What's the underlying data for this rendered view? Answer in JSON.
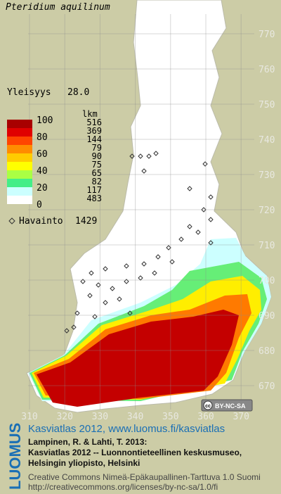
{
  "title": "Pteridium aquilinum",
  "frequency": {
    "label": "Yleisyys",
    "value": "28.0"
  },
  "legend": {
    "count_header": "lkm",
    "scale_labels": [
      100,
      80,
      60,
      40,
      20,
      0
    ],
    "classes": [
      {
        "count": 516,
        "color": "#a80000"
      },
      {
        "count": 369,
        "color": "#e00000"
      },
      {
        "count": 144,
        "color": "#ff4400"
      },
      {
        "count": 79,
        "color": "#ff8c00"
      },
      {
        "count": 90,
        "color": "#ffcc00"
      },
      {
        "count": 75,
        "color": "#ffff00"
      },
      {
        "count": 65,
        "color": "#aaff44"
      },
      {
        "count": 82,
        "color": "#44ee88"
      },
      {
        "count": 117,
        "color": "#ccffff"
      },
      {
        "count": 483,
        "color": "#ffffff"
      }
    ],
    "observation": {
      "label": "Havainto",
      "count": 1429
    }
  },
  "map_grid": {
    "y_labels": [
      770,
      760,
      750,
      740,
      730,
      720,
      710,
      700,
      690,
      680,
      670
    ],
    "x_labels": [
      310,
      320,
      330,
      340,
      350,
      360,
      370
    ]
  },
  "license_badge": {
    "icon": "cc",
    "text": "BY-NC-SA"
  },
  "footer": {
    "logo": "LUOMUS",
    "link": "Kasviatlas 2012, www.luomus.fi/kasviatlas",
    "citation": [
      "Lampinen, R. & Lahti, T. 2013:",
      "Kasviatlas 2012 -- Luonnontieteellinen keskusmuseo,",
      "Helsingin yliopisto, Helsinki"
    ],
    "license": [
      "Creative Commons Nimeä-Epäkaupallinen-Tarttuva 1.0 Suomi",
      "http://creativecommons.org/licenses/by-nc-sa/1.0/fi"
    ]
  }
}
